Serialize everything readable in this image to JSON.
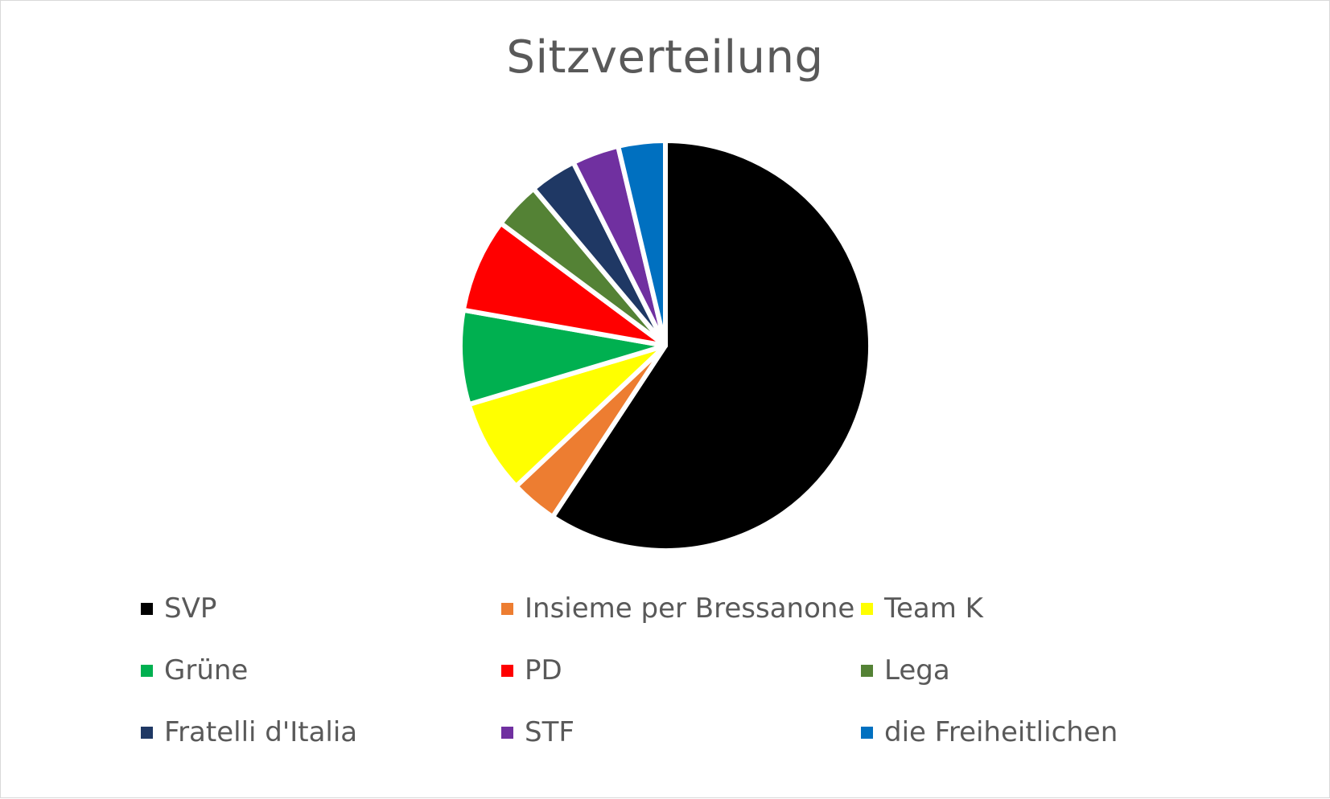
{
  "chart_data": {
    "type": "pie",
    "title": "Sitzverteilung",
    "series": [
      {
        "categories": [
          "SVP",
          "Insieme per Bressanone",
          "Team K",
          "Grüne",
          "PD",
          "Lega",
          "Fratelli d'Italia",
          "STF",
          "die Freiheitlichen"
        ],
        "values": [
          16,
          1,
          2,
          2,
          2,
          1,
          1,
          1,
          1
        ],
        "colors": [
          "#000000",
          "#ED7D31",
          "#FFFF00",
          "#00B050",
          "#FF0000",
          "#548235",
          "#1F3864",
          "#7030A0",
          "#0070C0"
        ]
      }
    ],
    "legend": "bottom",
    "legend_entries": [
      "SVP",
      "Insieme per Bressanone",
      "Team K",
      "Grüne",
      "PD",
      "Lega",
      "Fratelli d'Italia",
      "STF",
      "die Freiheitlichen"
    ]
  }
}
